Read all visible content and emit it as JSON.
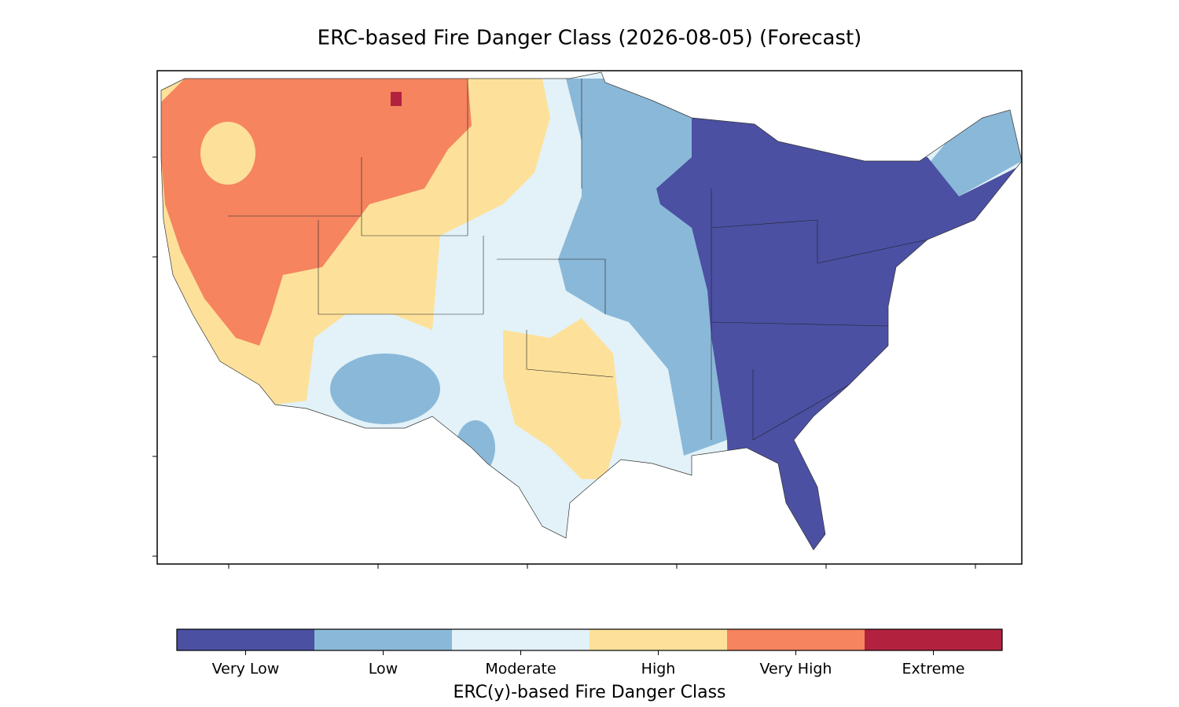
{
  "title": "ERC-based Fire Danger Class (2026-08-05) (Forecast)",
  "colorbar": {
    "label": "ERC(y)-based Fire Danger Class",
    "classes": [
      {
        "name": "Very Low",
        "color": "#4b50a3"
      },
      {
        "name": "Low",
        "color": "#8ab8d8"
      },
      {
        "name": "Moderate",
        "color": "#e2f2f8"
      },
      {
        "name": "High",
        "color": "#fde19a"
      },
      {
        "name": "Very High",
        "color": "#f5845f"
      },
      {
        "name": "Extreme",
        "color": "#b2223f"
      }
    ]
  }
}
